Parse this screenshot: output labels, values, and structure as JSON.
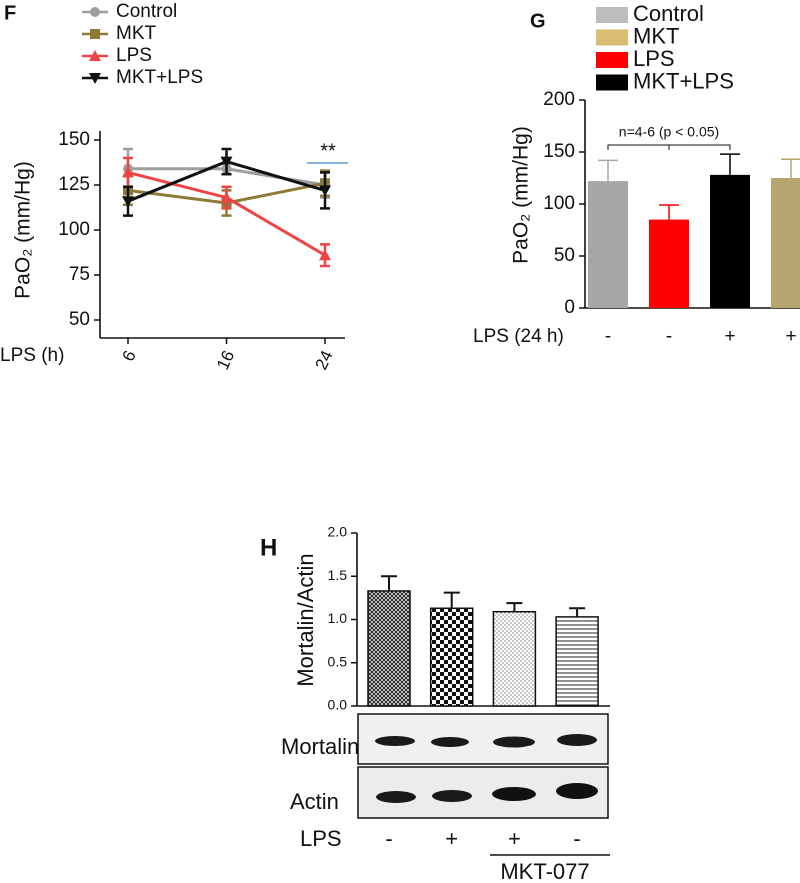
{
  "chart_data": [
    {
      "type": "line",
      "panel_label": "F",
      "y_label": "PaO₂ (mm/Hg)",
      "x_label": "LPS (h)",
      "categories": [
        "6",
        "16",
        "24"
      ],
      "series": [
        {
          "name": "Control",
          "color": "#9e9e9e",
          "marker": "circle",
          "values": [
            134,
            134,
            125
          ],
          "errors": [
            11,
            3,
            7
          ]
        },
        {
          "name": "MKT",
          "color": "#8c7a35",
          "marker": "square",
          "values": [
            122,
            115,
            126
          ],
          "errors": [
            8,
            7,
            7
          ]
        },
        {
          "name": "LPS",
          "color": "#ee4444",
          "marker": "triangle",
          "values": [
            132,
            118,
            86
          ],
          "errors": [
            8,
            6,
            6
          ]
        },
        {
          "name": "MKT+LPS",
          "color": "#111111",
          "marker": "triangle-down",
          "values": [
            116,
            138,
            122
          ],
          "errors": [
            8,
            7,
            10
          ]
        }
      ],
      "ylim": [
        40,
        155
      ],
      "yticks": [
        50,
        75,
        100,
        125,
        150
      ],
      "annotation": "**",
      "annotation_color": "#5b9bd5"
    },
    {
      "type": "bar",
      "panel_label": "G",
      "y_label": "PaO₂ (mm/Hg)",
      "x_label": "LPS (24 h)",
      "categories": [
        "-",
        "-",
        "+",
        "+"
      ],
      "values": [
        122,
        85,
        128,
        125
      ],
      "errors": [
        20,
        14,
        20,
        18
      ],
      "colors": [
        "#a6a6a8",
        "#ff0000",
        "#000000",
        "#b5a56e"
      ],
      "legend": [
        {
          "name": "Control",
          "color": "#bdbdbd"
        },
        {
          "name": "MKT",
          "color": "#d8bd72"
        },
        {
          "name": "LPS",
          "color": "#ff0000"
        },
        {
          "name": "MKT+LPS",
          "color": "#000000"
        }
      ],
      "ylim": [
        0,
        200
      ],
      "yticks": [
        0,
        50,
        100,
        150,
        200
      ],
      "annotation": "n=4-6 (p < 0.05)"
    },
    {
      "type": "bar",
      "panel_label": "H",
      "y_label": "Mortalin/Actin",
      "x_label": "LPS",
      "categories": [
        "-",
        "+",
        "+",
        "-"
      ],
      "values": [
        1.33,
        1.13,
        1.09,
        1.03
      ],
      "errors": [
        0.17,
        0.18,
        0.1,
        0.1
      ],
      "patterns": [
        "crosshatch",
        "checker",
        "dots",
        "hlines"
      ],
      "ylim": [
        0,
        2
      ],
      "yticks": [
        {
          "value": 0,
          "label": "0.0"
        },
        0.5,
        {
          "value": 1,
          "label": "1.0"
        },
        1.5,
        {
          "value": 2,
          "label": "2.0"
        }
      ],
      "blot_labels": [
        "Mortalin",
        "Actin"
      ],
      "group_label": "MKT-077"
    }
  ]
}
